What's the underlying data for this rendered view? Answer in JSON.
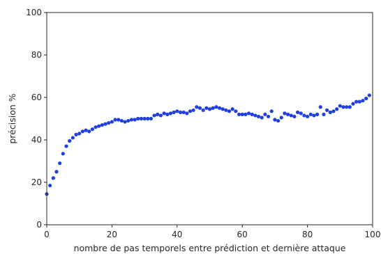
{
  "chart_data": {
    "type": "scatter",
    "title": "",
    "xlabel": "nombre de pas temporels entre prédiction et dernière attaque",
    "ylabel": "précision %",
    "xlim": [
      0,
      100
    ],
    "ylim": [
      0,
      100
    ],
    "xticks": [
      0,
      20,
      40,
      60,
      80,
      100
    ],
    "yticks": [
      0,
      20,
      40,
      60,
      80,
      100
    ],
    "xtick_labels": [
      "0",
      "20",
      "40",
      "60",
      "80",
      "100"
    ],
    "ytick_labels": [
      "0",
      "20",
      "40",
      "60",
      "80",
      "100"
    ],
    "grid": false,
    "marker_color": "#1f3fe0",
    "series": [
      {
        "x": [
          0,
          1,
          2,
          3,
          4,
          5,
          6,
          7,
          8,
          9,
          10,
          11,
          12,
          13,
          14,
          15,
          16,
          17,
          18,
          19,
          20,
          21,
          22,
          23,
          24,
          25,
          26,
          27,
          28,
          29,
          30,
          31,
          32,
          33,
          34,
          35,
          36,
          37,
          38,
          39,
          40,
          41,
          42,
          43,
          44,
          45,
          46,
          47,
          48,
          49,
          50,
          51,
          52,
          53,
          54,
          55,
          56,
          57,
          58,
          59,
          60,
          61,
          62,
          63,
          64,
          65,
          66,
          67,
          68,
          69,
          70,
          71,
          72,
          73,
          74,
          75,
          76,
          77,
          78,
          79,
          80,
          81,
          82,
          83,
          84,
          85,
          86,
          87,
          88,
          89,
          90,
          91,
          92,
          93,
          94,
          95,
          96,
          97,
          98,
          99
        ],
        "y": [
          14.5,
          18.5,
          22,
          25,
          29,
          33.5,
          37,
          39.5,
          41,
          42.5,
          43,
          44,
          44.5,
          44,
          45,
          46,
          46.5,
          47,
          47.5,
          48,
          48.5,
          49.5,
          49.5,
          49,
          48.5,
          49,
          49.5,
          49.5,
          50,
          50,
          50,
          50,
          50,
          51.5,
          52,
          51.5,
          52.5,
          52,
          52.5,
          53,
          53.5,
          53,
          53,
          52.5,
          53.5,
          54,
          55.5,
          55,
          54,
          55,
          54.5,
          55,
          55.5,
          55,
          54.5,
          54,
          53.5,
          54.5,
          53.5,
          52,
          52,
          52,
          52.5,
          52,
          51.5,
          51,
          50.5,
          52,
          51,
          53.5,
          49.5,
          49,
          50.5,
          52.5,
          52,
          51.5,
          51,
          53,
          52.5,
          51.5,
          51,
          52,
          51.5,
          52,
          55.5,
          52,
          54,
          53,
          53.5,
          54.5,
          56,
          55.5,
          55.5,
          55.5,
          57,
          58,
          58,
          58.5,
          59.5,
          61
        ]
      }
    ]
  }
}
